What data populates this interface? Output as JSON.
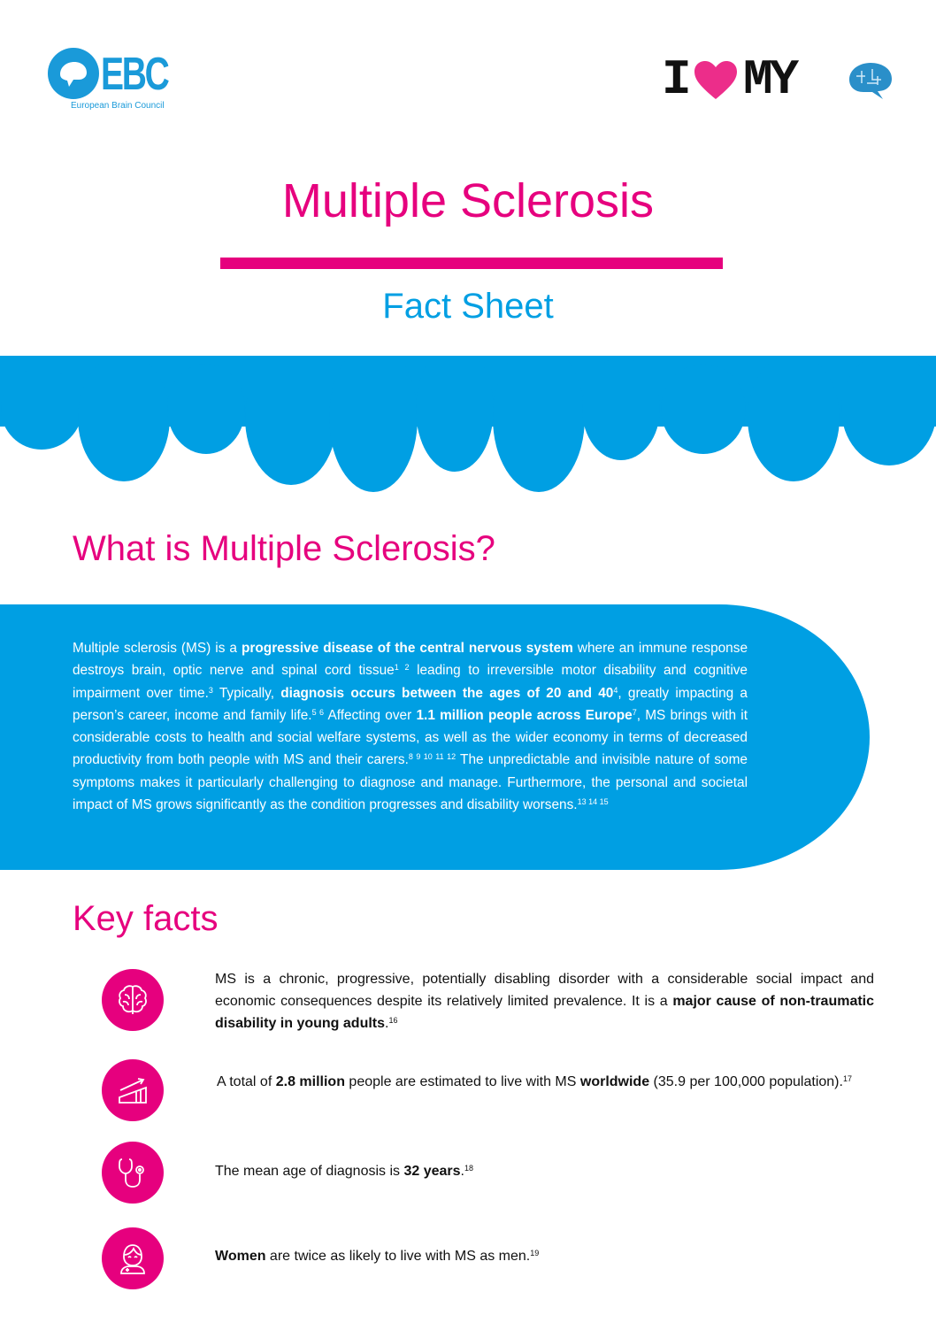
{
  "header": {
    "ebc_logo": {
      "letters": "EBC",
      "subtitle": "European Brain Council"
    },
    "campaign_logo": {
      "text_1": "I",
      "text_2": "MY",
      "heart_color": "#ec2d8a"
    }
  },
  "title": "Multiple Sclerosis",
  "subtitle": "Fact Sheet",
  "colors": {
    "pink": "#e6007e",
    "blue": "#009fe3"
  },
  "what_is": {
    "heading": "What is Multiple Sclerosis?",
    "runs": [
      {
        "t": "Multiple sclerosis (MS) is a "
      },
      {
        "t": "progressive disease of the central nervous system",
        "b": true
      },
      {
        "t": " where an immune response destroys brain, optic nerve and spinal cord tissue"
      },
      {
        "t": "1 2",
        "s": true
      },
      {
        "t": " leading to irreversible motor disability and cognitive impairment over time."
      },
      {
        "t": "3",
        "s": true
      },
      {
        "t": " Typically, "
      },
      {
        "t": "diagnosis occurs between the ages of 20 and 40",
        "b": true
      },
      {
        "t": "4",
        "s": true
      },
      {
        "t": ", greatly impacting a person’s career, income and family life."
      },
      {
        "t": "5 6",
        "s": true
      },
      {
        "t": " Affecting over "
      },
      {
        "t": "1.1 million people across Europe",
        "b": true
      },
      {
        "t": "7",
        "s": true
      },
      {
        "t": ", MS brings with it considerable costs to health and social welfare systems, as well as the wider economy in terms of decreased productivity from both people with MS and their carers."
      },
      {
        "t": "8 9 10 11 12",
        "s": true
      },
      {
        "t": " The unpredictable and invisible nature of some symptoms makes it particularly challenging to diagnose and manage. Furthermore, the personal and societal impact of MS grows significantly as the condition progresses and disability worsens."
      },
      {
        "t": "13 14 15",
        "s": true
      }
    ]
  },
  "key_facts": {
    "heading": "Key facts",
    "items": [
      {
        "icon": "brain-icon",
        "runs": [
          {
            "t": "MS is a chronic, progressive, potentially disabling disorder with a considerable social impact and economic consequences despite its relatively limited prevalence. It is a "
          },
          {
            "t": "major cause of non-traumatic disability in young adults",
            "b": true
          },
          {
            "t": "."
          },
          {
            "t": "16",
            "s": true
          }
        ]
      },
      {
        "icon": "growth-chart-icon",
        "runs": [
          {
            "t": "A total of "
          },
          {
            "t": "2.8 million",
            "b": true
          },
          {
            "t": " people are estimated to live with MS "
          },
          {
            "t": "worldwide",
            "b": true
          },
          {
            "t": " (35.9 per 100,000 population)."
          },
          {
            "t": "17",
            "s": true
          }
        ]
      },
      {
        "icon": "stethoscope-icon",
        "runs": [
          {
            "t": "The mean age of diagnosis is "
          },
          {
            "t": "32 years",
            "b": true
          },
          {
            "t": "."
          },
          {
            "t": "18",
            "s": true
          }
        ]
      },
      {
        "icon": "woman-icon",
        "runs": [
          {
            "t": "Women",
            "b": true
          },
          {
            "t": " are twice as likely to live with MS as men."
          },
          {
            "t": "19",
            "s": true
          }
        ]
      }
    ]
  }
}
